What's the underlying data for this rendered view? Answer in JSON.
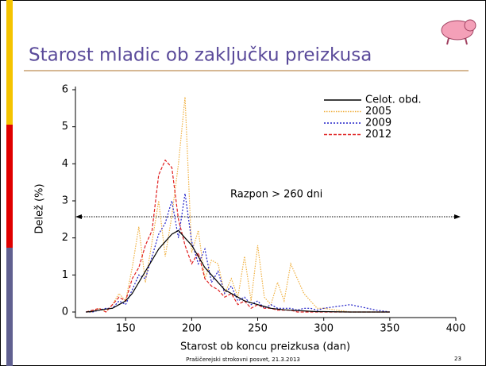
{
  "chart_data": {
    "type": "line",
    "title": "Starost mladic ob zaključku preizkusa",
    "x_label": "Starost ob koncu preizkusa (dan)",
    "y_label": "Delež (%)",
    "annotation": "Razpon > 260 dni",
    "legend": "top-right",
    "xlim": [
      112,
      400
    ],
    "xticks": [
      150,
      200,
      250,
      300,
      350,
      400
    ],
    "ylim": [
      0,
      6
    ],
    "yticks": [
      0,
      1,
      2,
      3,
      4,
      5,
      6
    ],
    "grid": false,
    "x": [
      120,
      125,
      130,
      135,
      140,
      145,
      150,
      155,
      160,
      165,
      170,
      175,
      180,
      185,
      190,
      195,
      200,
      205,
      210,
      215,
      220,
      225,
      230,
      235,
      240,
      245,
      250,
      255,
      260,
      265,
      270,
      275,
      280,
      285,
      290,
      295,
      300,
      320,
      340,
      350
    ],
    "series": [
      {
        "name": "Celot. obd.",
        "color": "#000000",
        "dash": "none",
        "values": [
          0,
          0.02,
          0.05,
          0.08,
          0.1,
          0.2,
          0.3,
          0.5,
          0.8,
          1.1,
          1.4,
          1.7,
          1.9,
          2.1,
          2.2,
          2.0,
          1.8,
          1.5,
          1.2,
          1.0,
          0.8,
          0.6,
          0.5,
          0.4,
          0.3,
          0.25,
          0.2,
          0.15,
          0.1,
          0.08,
          0.06,
          0.05,
          0.04,
          0.03,
          0.02,
          0.01,
          0.01,
          0,
          0,
          0
        ]
      },
      {
        "name": "2005",
        "color": "#f0b040",
        "dash": "1.5 1.5",
        "values": [
          0,
          0,
          0.1,
          0,
          0.2,
          0.5,
          0.3,
          1.2,
          2.3,
          0.8,
          1.9,
          3.0,
          1.5,
          2.6,
          4.0,
          5.8,
          1.6,
          2.2,
          0.9,
          1.4,
          1.3,
          0.5,
          0.9,
          0.4,
          1.5,
          0.3,
          1.8,
          0.4,
          0.2,
          0.8,
          0.3,
          1.3,
          0.9,
          0.5,
          0.3,
          0.1,
          0.1,
          0,
          0,
          0
        ]
      },
      {
        "name": "2009",
        "color": "#2020c8",
        "dash": "2 2",
        "values": [
          0,
          0,
          0.05,
          0.1,
          0.1,
          0.3,
          0.2,
          0.6,
          1.0,
          0.9,
          1.5,
          2.1,
          2.4,
          3.0,
          2.0,
          3.2,
          1.9,
          1.3,
          1.7,
          0.8,
          1.1,
          0.5,
          0.7,
          0.3,
          0.4,
          0.2,
          0.3,
          0.1,
          0.2,
          0.1,
          0.1,
          0.1,
          0.05,
          0.1,
          0.1,
          0.05,
          0.1,
          0.2,
          0.05,
          0
        ]
      },
      {
        "name": "2012",
        "color": "#e02020",
        "dash": "4 2",
        "values": [
          0,
          0.05,
          0.1,
          0,
          0.2,
          0.4,
          0.3,
          0.9,
          1.2,
          1.8,
          2.2,
          3.7,
          4.1,
          3.9,
          2.5,
          1.8,
          1.3,
          1.6,
          0.9,
          0.7,
          0.6,
          0.4,
          0.5,
          0.2,
          0.3,
          0.1,
          0.2,
          0.1,
          0.1,
          0.05,
          0.05,
          0.05,
          0,
          0,
          0,
          0,
          0,
          0,
          0,
          0
        ]
      }
    ]
  },
  "slide": {
    "footer": "Prašičerejski strokovni posvet, 21.3.2013",
    "page_number": "23"
  }
}
